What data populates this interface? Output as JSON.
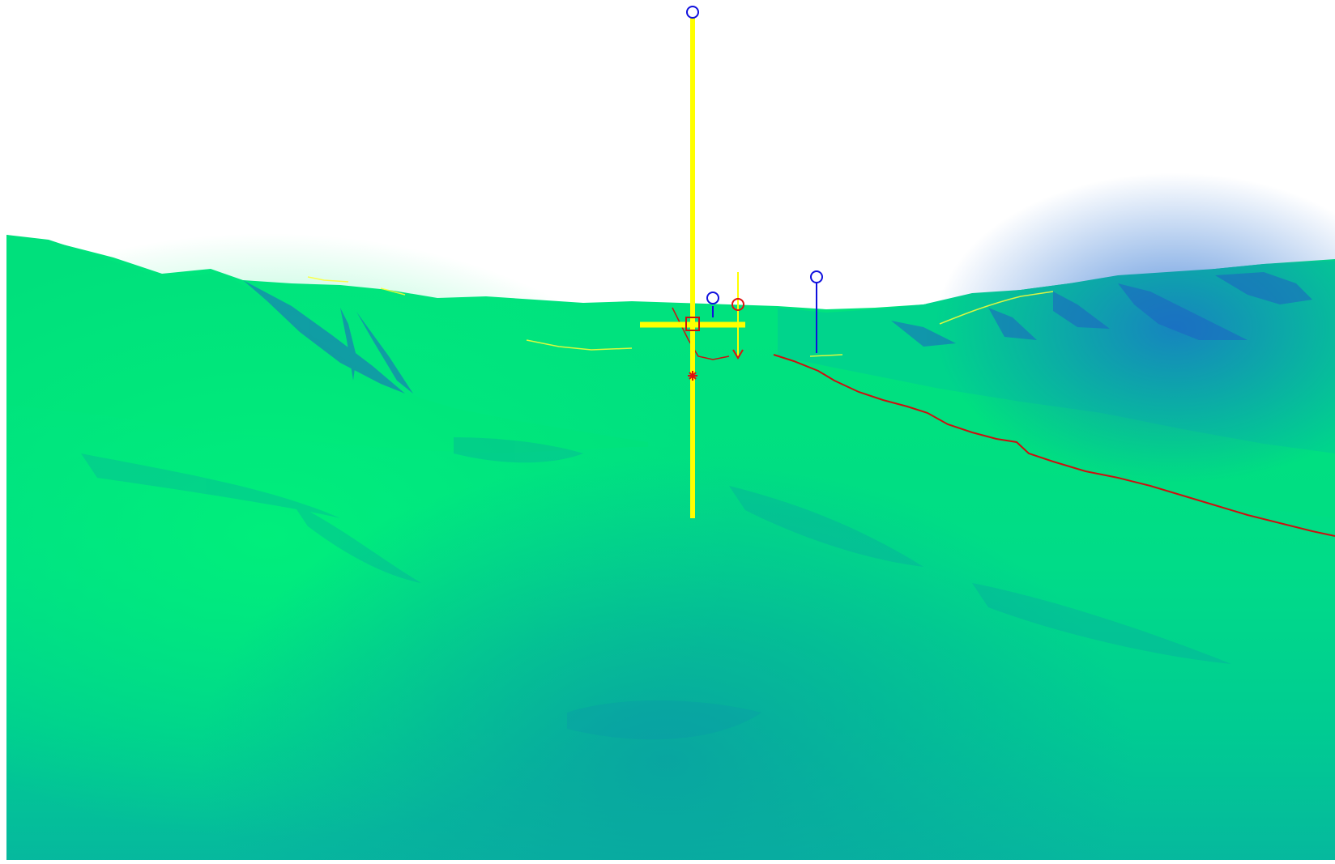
{
  "scene": {
    "view": "3d-terrain",
    "colors": {
      "sky": "#ffffff",
      "terrain_light": "#00e57a",
      "terrain_mid": "#00d28e",
      "terrain_dark": "#0aa6a2",
      "shadow_blue": "#1e5fc8",
      "cursor": "#ffff00",
      "track": "#cc1010",
      "waypoint_blue": "#1010dd",
      "waypoint_red": "#dd1010",
      "contour": "#ffff33"
    },
    "icons": [
      "cursor-crosshair-icon",
      "waypoint-marker-icon",
      "target-marker-icon",
      "track-line-icon"
    ]
  }
}
